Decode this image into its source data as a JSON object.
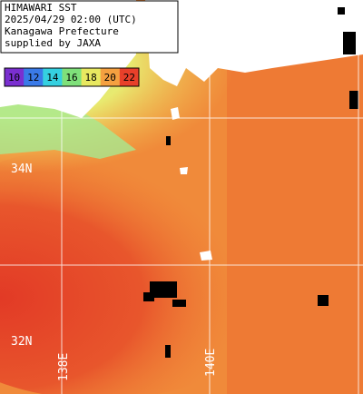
{
  "header": {
    "lines": [
      "HIMAWARI SST",
      "2025/04/29 02:00 (UTC)",
      "Kanagawa Prefecture",
      "supplied by JAXA"
    ]
  },
  "colorbar": {
    "labels": [
      "10",
      "12",
      "14",
      "16",
      "18",
      "20",
      "22"
    ],
    "colors": [
      "#7a2fd0",
      "#3a7ae8",
      "#35d0e0",
      "#7fe07a",
      "#e8e860",
      "#f5a040",
      "#e8402a"
    ]
  },
  "grid": {
    "lat_labels": [
      "34N",
      "32N"
    ],
    "lon_labels": [
      "138E",
      "140E"
    ]
  }
}
